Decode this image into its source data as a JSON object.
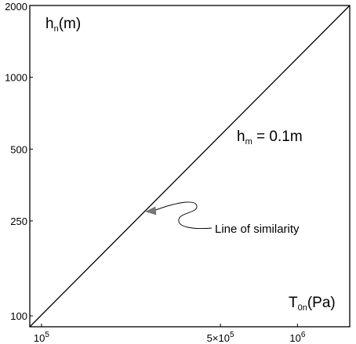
{
  "chart_data": {
    "type": "line",
    "x_scale": "log",
    "y_scale": "log",
    "xlim": [
      90000,
      1600000
    ],
    "ylim": [
      90,
      2000
    ],
    "grid": false,
    "x_ticks": [
      {
        "value": 100000,
        "base": "10",
        "exp": "5"
      },
      {
        "value": 500000,
        "base": "5×10",
        "exp": "5"
      },
      {
        "value": 1000000,
        "base": "10",
        "exp": "6"
      }
    ],
    "y_ticks": [
      {
        "value": 100,
        "label": "100"
      },
      {
        "value": 250,
        "label": "250"
      },
      {
        "value": 500,
        "label": "500"
      },
      {
        "value": 1000,
        "label": "1000"
      },
      {
        "value": 2000,
        "label": "2000"
      }
    ],
    "ylabel": {
      "main": "h",
      "sub": "n",
      "unit": "(m)"
    },
    "xlabel": {
      "main": "T",
      "sub": "0n",
      "unit": "(Pa)"
    },
    "series": [
      {
        "x": [
          90000,
          1600000
        ],
        "y": [
          90,
          2000
        ],
        "label": {
          "main": "h",
          "sub": "m",
          "rest": " = 0.1m"
        }
      }
    ],
    "annotation": {
      "text": "Line of similarity",
      "x": 261000,
      "y": 250
    }
  }
}
